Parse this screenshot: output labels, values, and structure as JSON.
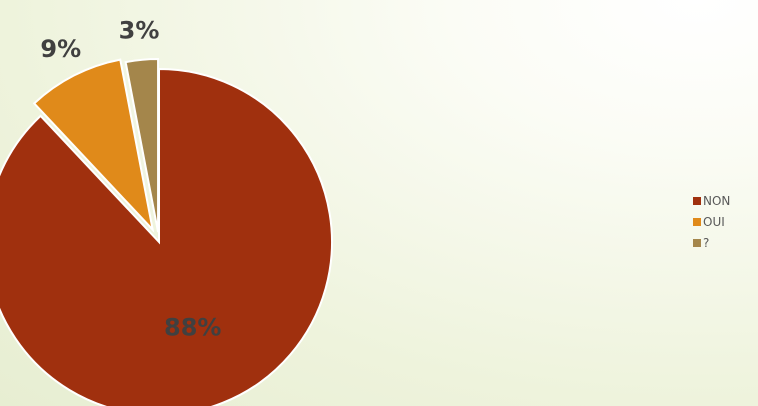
{
  "chart_data": {
    "type": "pie",
    "exploded": true,
    "slices": [
      {
        "label": "NON",
        "value": 88,
        "display": "88%",
        "color": "#a0300e"
      },
      {
        "label": "OUI",
        "value": 9,
        "display": "9%",
        "color": "#e08a1a"
      },
      {
        "label": "?",
        "value": 3,
        "display": "3%",
        "color": "#a4864b"
      }
    ],
    "legend_position": "right"
  }
}
